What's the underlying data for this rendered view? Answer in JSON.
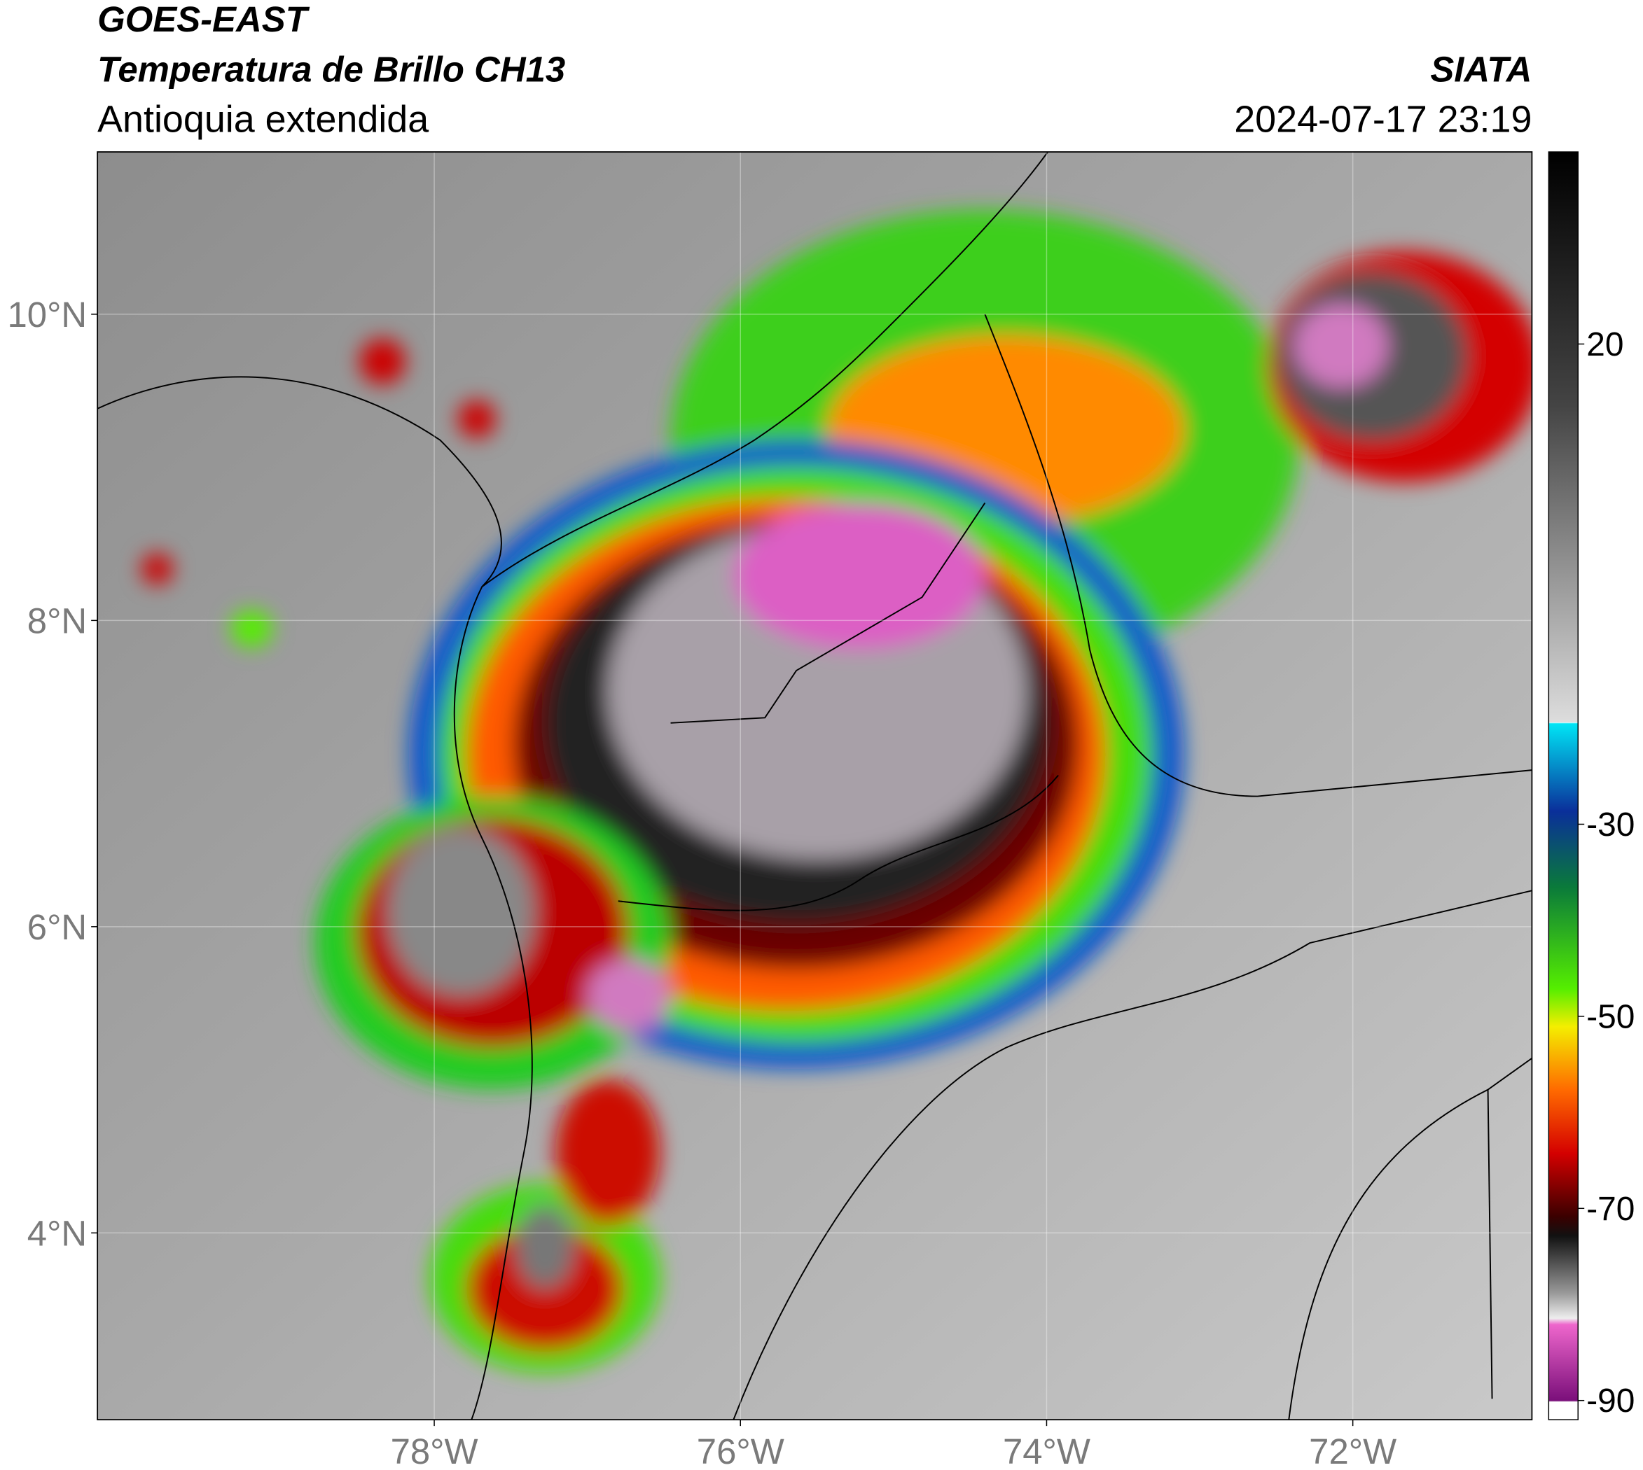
{
  "header": {
    "title": "GOES-EAST",
    "subtitle": "Temperatura de Brillo CH13",
    "region": "Antioquia extendida",
    "source": "SIATA",
    "datetime": "2024-07-17 23:19"
  },
  "map": {
    "xlim": [
      -80.2,
      -70.83
    ],
    "ylim": [
      2.78,
      11.06
    ],
    "xticks": [
      {
        "value": -78,
        "label": "78°W"
      },
      {
        "value": -76,
        "label": "76°W"
      },
      {
        "value": -74,
        "label": "74°W"
      },
      {
        "value": -72,
        "label": "72°W"
      }
    ],
    "yticks": [
      {
        "value": 4,
        "label": "4°N"
      },
      {
        "value": 6,
        "label": "6°N"
      },
      {
        "value": 8,
        "label": "8°N"
      },
      {
        "value": 10,
        "label": "10°N"
      }
    ],
    "grid": true
  },
  "colorbar": {
    "lim": [
      -92,
      40
    ],
    "ticks": [
      20,
      -30,
      -50,
      -70,
      -90
    ]
  }
}
